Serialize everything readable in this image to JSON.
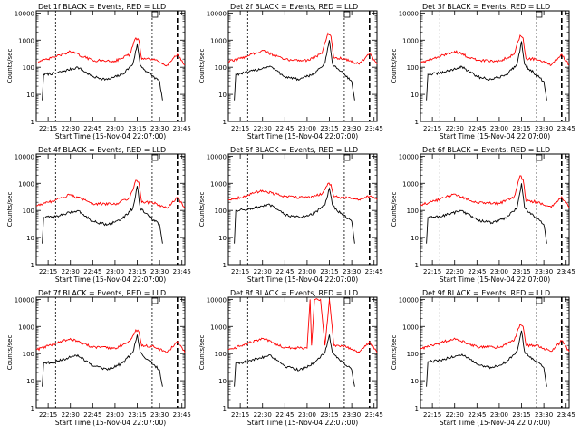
{
  "figure": {
    "ylabel": "Counts/sec",
    "xlabel": "Start Time (15-Nov-04 22:07:00)",
    "colors": {
      "events": "#000000",
      "lld": "#ff0000",
      "axes": "#000000"
    },
    "y_ticks": [
      "1",
      "10",
      "100",
      "1000",
      "10000"
    ],
    "x_ticks": [
      "22:15",
      "22:30",
      "22:45",
      "23:00",
      "23:15",
      "23:30",
      "23:45"
    ]
  },
  "chart_data": [
    {
      "type": "line",
      "title": "Det 1f BLACK = Events, RED = LLD",
      "panel": "1f",
      "xlabel": "Start Time (15-Nov-04 22:07:00)",
      "ylabel": "Counts/sec",
      "yscale": "log",
      "ylim": [
        1,
        12000
      ],
      "xlim": [
        "22:07",
        "23:47"
      ],
      "series": [
        {
          "name": "Events",
          "color": "#000000",
          "x": [
            "22:11",
            "22:12",
            "22:20",
            "22:35",
            "22:45",
            "22:55",
            "23:05",
            "23:12",
            "23:15",
            "23:17",
            "23:20",
            "23:23",
            "23:30",
            "23:32"
          ],
          "values": [
            6,
            55,
            60,
            100,
            45,
            35,
            55,
            130,
            700,
            120,
            80,
            60,
            30,
            6
          ]
        },
        {
          "name": "LLD",
          "color": "#ff0000",
          "x": [
            "22:07",
            "22:15",
            "22:30",
            "22:45",
            "23:00",
            "23:10",
            "23:14",
            "23:16",
            "23:18",
            "23:25",
            "23:35",
            "23:42",
            "23:47"
          ],
          "values": [
            150,
            200,
            380,
            180,
            170,
            300,
            1200,
            1000,
            200,
            200,
            120,
            300,
            120
          ]
        }
      ]
    },
    {
      "type": "line",
      "title": "Det 2f BLACK = Events, RED = LLD",
      "panel": "2f",
      "xlabel": "Start Time (15-Nov-04 22:07:00)",
      "ylabel": "Counts/sec",
      "yscale": "log",
      "ylim": [
        1,
        12000
      ],
      "xlim": [
        "22:07",
        "23:47"
      ],
      "series": [
        {
          "name": "Events",
          "color": "#000000",
          "x": [
            "22:11",
            "22:12",
            "22:20",
            "22:35",
            "22:45",
            "22:55",
            "23:05",
            "23:12",
            "23:15",
            "23:17",
            "23:20",
            "23:23",
            "23:30",
            "23:32"
          ],
          "values": [
            6,
            55,
            65,
            110,
            45,
            35,
            60,
            140,
            1000,
            140,
            90,
            70,
            30,
            6
          ]
        },
        {
          "name": "LLD",
          "color": "#ff0000",
          "x": [
            "22:07",
            "22:15",
            "22:30",
            "22:45",
            "23:00",
            "23:10",
            "23:14",
            "23:16",
            "23:18",
            "23:25",
            "23:35",
            "23:42",
            "23:47"
          ],
          "values": [
            160,
            210,
            420,
            190,
            180,
            320,
            1800,
            1400,
            220,
            210,
            130,
            320,
            130
          ]
        }
      ]
    },
    {
      "type": "line",
      "title": "Det 3f BLACK = Events, RED = LLD",
      "panel": "3f",
      "xlabel": "Start Time (15-Nov-04 22:07:00)",
      "ylabel": "Counts/sec",
      "yscale": "log",
      "ylim": [
        1,
        12000
      ],
      "xlim": [
        "22:07",
        "23:47"
      ],
      "series": [
        {
          "name": "Events",
          "color": "#000000",
          "x": [
            "22:11",
            "22:12",
            "22:20",
            "22:35",
            "22:45",
            "22:55",
            "23:05",
            "23:12",
            "23:15",
            "23:17",
            "23:20",
            "23:23",
            "23:30",
            "23:32"
          ],
          "values": [
            6,
            55,
            60,
            105,
            45,
            35,
            55,
            130,
            900,
            130,
            85,
            65,
            30,
            6
          ]
        },
        {
          "name": "LLD",
          "color": "#ff0000",
          "x": [
            "22:07",
            "22:15",
            "22:30",
            "22:45",
            "23:00",
            "23:10",
            "23:14",
            "23:16",
            "23:18",
            "23:25",
            "23:35",
            "23:42",
            "23:47"
          ],
          "values": [
            150,
            200,
            390,
            180,
            170,
            300,
            1500,
            1200,
            210,
            200,
            120,
            300,
            120
          ]
        }
      ]
    },
    {
      "type": "line",
      "title": "Det 4f BLACK = Events, RED = LLD",
      "panel": "4f",
      "xlabel": "Start Time (15-Nov-04 22:07:00)",
      "ylabel": "Counts/sec",
      "yscale": "log",
      "ylim": [
        1,
        12000
      ],
      "xlim": [
        "22:07",
        "23:47"
      ],
      "series": [
        {
          "name": "Events",
          "color": "#000000",
          "x": [
            "22:11",
            "22:12",
            "22:20",
            "22:35",
            "22:45",
            "22:55",
            "23:05",
            "23:12",
            "23:15",
            "23:17",
            "23:20",
            "23:23",
            "23:30",
            "23:32"
          ],
          "values": [
            6,
            55,
            60,
            100,
            40,
            30,
            50,
            120,
            800,
            120,
            80,
            60,
            30,
            6
          ]
        },
        {
          "name": "LLD",
          "color": "#ff0000",
          "x": [
            "22:07",
            "22:15",
            "22:30",
            "22:45",
            "23:00",
            "23:10",
            "23:14",
            "23:16",
            "23:18",
            "23:25",
            "23:35",
            "23:42",
            "23:47"
          ],
          "values": [
            150,
            200,
            380,
            180,
            170,
            300,
            1300,
            1100,
            200,
            200,
            120,
            300,
            120
          ]
        }
      ]
    },
    {
      "type": "line",
      "title": "Det 5f BLACK = Events, RED = LLD",
      "panel": "5f",
      "xlabel": "Start Time (15-Nov-04 22:07:00)",
      "ylabel": "Counts/sec",
      "yscale": "log",
      "ylim": [
        1,
        12000
      ],
      "xlim": [
        "22:07",
        "23:47"
      ],
      "series": [
        {
          "name": "Events",
          "color": "#000000",
          "x": [
            "22:11",
            "22:12",
            "22:20",
            "22:35",
            "22:45",
            "22:55",
            "23:05",
            "23:12",
            "23:15",
            "23:17",
            "23:20",
            "23:23",
            "23:30",
            "23:32"
          ],
          "values": [
            6,
            100,
            110,
            160,
            70,
            55,
            80,
            160,
            650,
            160,
            100,
            80,
            40,
            6
          ]
        },
        {
          "name": "LLD",
          "color": "#ff0000",
          "x": [
            "22:07",
            "22:15",
            "22:30",
            "22:45",
            "23:00",
            "23:10",
            "23:14",
            "23:16",
            "23:18",
            "23:25",
            "23:35",
            "23:42",
            "23:47"
          ],
          "values": [
            250,
            300,
            550,
            320,
            300,
            400,
            1000,
            900,
            320,
            300,
            250,
            330,
            250
          ]
        }
      ]
    },
    {
      "type": "line",
      "title": "Det 6f BLACK = Events, RED = LLD",
      "panel": "6f",
      "xlabel": "Start Time (15-Nov-04 22:07:00)",
      "ylabel": "Counts/sec",
      "yscale": "log",
      "ylim": [
        1,
        12000
      ],
      "xlim": [
        "22:07",
        "23:47"
      ],
      "series": [
        {
          "name": "Events",
          "color": "#000000",
          "x": [
            "22:11",
            "22:12",
            "22:20",
            "22:35",
            "22:45",
            "22:55",
            "23:05",
            "23:12",
            "23:15",
            "23:17",
            "23:20",
            "23:23",
            "23:30",
            "23:32"
          ],
          "values": [
            6,
            55,
            60,
            100,
            45,
            35,
            55,
            130,
            1000,
            130,
            85,
            65,
            30,
            6
          ]
        },
        {
          "name": "LLD",
          "color": "#ff0000",
          "x": [
            "22:07",
            "22:15",
            "22:30",
            "22:45",
            "23:00",
            "23:10",
            "23:14",
            "23:16",
            "23:18",
            "23:25",
            "23:35",
            "23:42",
            "23:47"
          ],
          "values": [
            160,
            210,
            400,
            190,
            180,
            320,
            1900,
            1400,
            220,
            210,
            130,
            320,
            130
          ]
        }
      ]
    },
    {
      "type": "line",
      "title": "Det 7f BLACK = Events, RED = LLD",
      "panel": "7f",
      "xlabel": "Start Time (15-Nov-04 22:07:00)",
      "ylabel": "Counts/sec",
      "yscale": "log",
      "ylim": [
        1,
        12000
      ],
      "xlim": [
        "22:07",
        "23:47"
      ],
      "series": [
        {
          "name": "Events",
          "color": "#000000",
          "x": [
            "22:11",
            "22:12",
            "22:20",
            "22:35",
            "22:45",
            "22:55",
            "23:05",
            "23:12",
            "23:15",
            "23:17",
            "23:20",
            "23:23",
            "23:30",
            "23:32"
          ],
          "values": [
            6,
            45,
            50,
            90,
            35,
            25,
            45,
            110,
            500,
            110,
            70,
            55,
            25,
            6
          ]
        },
        {
          "name": "LLD",
          "color": "#ff0000",
          "x": [
            "22:07",
            "22:15",
            "22:30",
            "22:45",
            "23:00",
            "23:10",
            "23:14",
            "23:16",
            "23:18",
            "23:25",
            "23:35",
            "23:42",
            "23:47"
          ],
          "values": [
            140,
            190,
            360,
            170,
            160,
            280,
            750,
            650,
            190,
            190,
            110,
            280,
            110
          ]
        }
      ]
    },
    {
      "type": "line",
      "title": "Det 8f BLACK = Events, RED = LLD",
      "panel": "8f",
      "xlabel": "Start Time (15-Nov-04 22:07:00)",
      "ylabel": "Counts/sec",
      "yscale": "log",
      "ylim": [
        1,
        12000
      ],
      "xlim": [
        "22:07",
        "23:47"
      ],
      "series": [
        {
          "name": "Events",
          "color": "#000000",
          "x": [
            "22:11",
            "22:12",
            "22:20",
            "22:35",
            "22:45",
            "22:55",
            "23:05",
            "23:12",
            "23:15",
            "23:17",
            "23:20",
            "23:23",
            "23:30",
            "23:32"
          ],
          "values": [
            6,
            45,
            50,
            90,
            35,
            25,
            45,
            110,
            500,
            110,
            70,
            55,
            25,
            6
          ]
        },
        {
          "name": "LLD",
          "color": "#ff0000",
          "x": [
            "22:07",
            "22:15",
            "22:30",
            "22:45",
            "23:00",
            "23:02",
            "23:03",
            "23:05",
            "23:09",
            "23:12",
            "23:15",
            "23:18",
            "23:25",
            "23:35",
            "23:42",
            "23:47"
          ],
          "values": [
            140,
            190,
            360,
            170,
            160,
            10000,
            200,
            10000,
            10000,
            200,
            10000,
            200,
            190,
            110,
            280,
            110
          ]
        }
      ]
    },
    {
      "type": "line",
      "title": "Det 9f BLACK = Events, RED = LLD",
      "panel": "9f",
      "xlabel": "Start Time (15-Nov-04 22:07:00)",
      "ylabel": "Counts/sec",
      "yscale": "log",
      "ylim": [
        1,
        12000
      ],
      "xlim": [
        "22:07",
        "23:47"
      ],
      "series": [
        {
          "name": "Events",
          "color": "#000000",
          "x": [
            "22:11",
            "22:12",
            "22:20",
            "22:35",
            "22:45",
            "22:55",
            "23:05",
            "23:12",
            "23:15",
            "23:17",
            "23:20",
            "23:23",
            "23:30",
            "23:32"
          ],
          "values": [
            6,
            50,
            55,
            95,
            40,
            30,
            50,
            120,
            700,
            120,
            80,
            60,
            30,
            6
          ]
        },
        {
          "name": "LLD",
          "color": "#ff0000",
          "x": [
            "22:07",
            "22:15",
            "22:30",
            "22:45",
            "23:00",
            "23:10",
            "23:14",
            "23:16",
            "23:18",
            "23:25",
            "23:35",
            "23:42",
            "23:47"
          ],
          "values": [
            150,
            200,
            370,
            180,
            170,
            300,
            1200,
            1000,
            200,
            200,
            120,
            300,
            120
          ]
        }
      ]
    }
  ]
}
